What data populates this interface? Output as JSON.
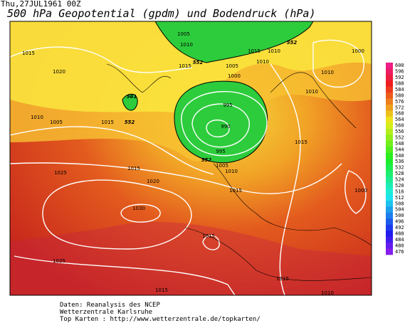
{
  "header": {
    "date": "Thu,27JUL1961 00Z",
    "title": "500 hPa Geopotential (gpdm) und Bodendruck (hPa)"
  },
  "legend": {
    "labels": [
      "600",
      "596",
      "592",
      "588",
      "584",
      "580",
      "576",
      "572",
      "568",
      "564",
      "560",
      "556",
      "552",
      "548",
      "544",
      "540",
      "536",
      "532",
      "528",
      "524",
      "520",
      "516",
      "512",
      "508",
      "504",
      "500",
      "496",
      "492",
      "488",
      "484",
      "480",
      "476"
    ]
  },
  "map": {
    "pressure_labels": [
      "1005",
      "1010",
      "1015",
      "1020",
      "1015",
      "1005",
      "1000",
      "1015",
      "1010",
      "1010",
      "1000",
      "1010",
      "1010",
      "995",
      "990",
      "995",
      "1005",
      "1010",
      "1010",
      "1005",
      "1015",
      "1015",
      "1015",
      "1025",
      "1020",
      "1015",
      "1000",
      "1030",
      "1015",
      "1025",
      "1015",
      "1015",
      "1010"
    ],
    "height_labels": [
      "552",
      "552",
      "552",
      "552",
      "561"
    ]
  },
  "footer": {
    "lines": [
      "Daten: Reanalysis des NCEP",
      "Wetterzentrale Karlsruhe",
      "Top Karten :  http://www.wetterzentrale.de/topkarten/"
    ]
  }
}
